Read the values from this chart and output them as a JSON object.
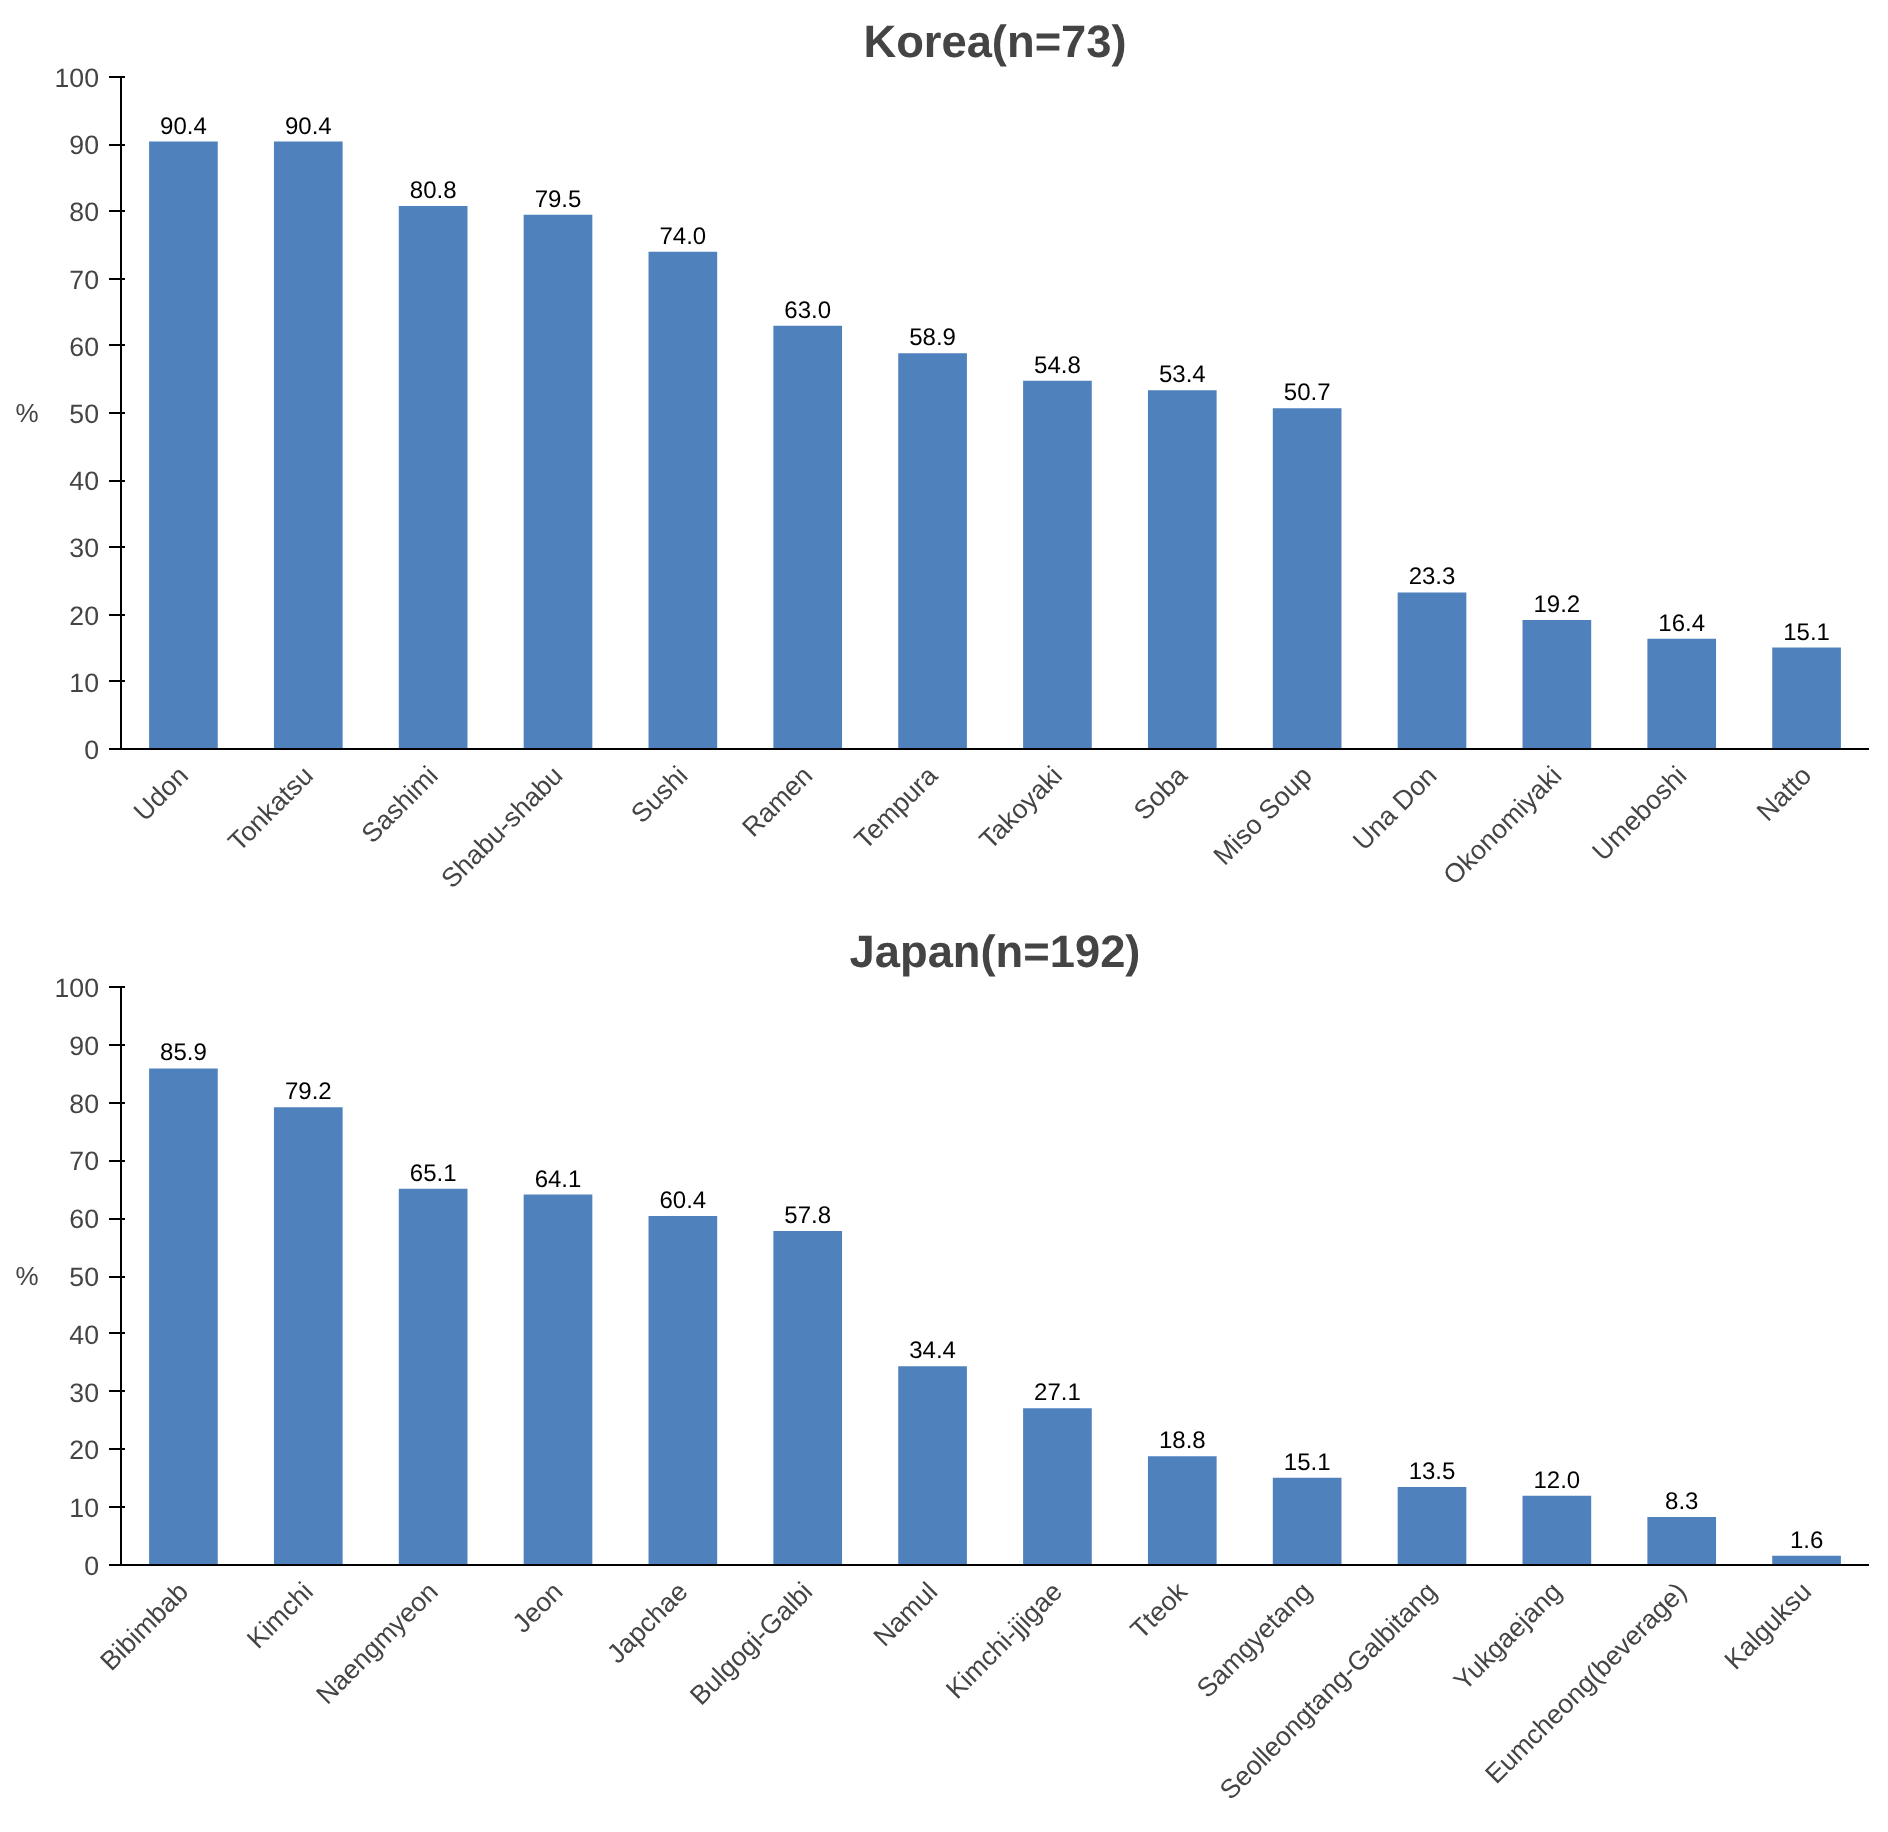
{
  "chart_data": [
    {
      "type": "bar",
      "title": "Korea(n=73)",
      "ylabel": "%",
      "categories": [
        "Udon",
        "Tonkatsu",
        "Sashimi",
        "Shabu-shabu",
        "Sushi",
        "Ramen",
        "Tempura",
        "Takoyaki",
        "Soba",
        "Miso Soup",
        "Una Don",
        "Okonomiyaki",
        "Umeboshi",
        "Natto"
      ],
      "values": [
        90.4,
        90.4,
        80.8,
        79.5,
        74.0,
        63.0,
        58.9,
        54.8,
        53.4,
        50.7,
        23.3,
        19.2,
        16.4,
        15.1
      ],
      "color": "#4f81bd",
      "value_labels": [
        "90.4",
        "90.4",
        "80.8",
        "79.5",
        "74.0",
        "63.0",
        "58.9",
        "54.8",
        "53.4",
        "50.7",
        "23.3",
        "19.2",
        "16.4",
        "15.1"
      ],
      "ylim": [
        0,
        100
      ],
      "yticks": [
        0,
        10,
        20,
        30,
        40,
        50,
        60,
        70,
        80,
        90,
        100
      ],
      "grid": false
    },
    {
      "type": "bar",
      "title": "Japan(n=192)",
      "ylabel": "%",
      "categories": [
        "Bibimbab",
        "Kimchi",
        "Naengmyeon",
        "Jeon",
        "Japchae",
        "Bulgogi-Galbi",
        "Namul",
        "Kimchi-jjigae",
        "Tteok",
        "Samgyetang",
        "Seolleongtang-Galbitang",
        "Yukgaejang",
        "Eumcheong(beverage)",
        "Kalguksu"
      ],
      "values": [
        85.9,
        79.2,
        65.1,
        64.1,
        60.4,
        57.8,
        34.4,
        27.1,
        18.8,
        15.1,
        13.5,
        12.0,
        8.3,
        1.6
      ],
      "color": "#4f81bd",
      "value_labels": [
        "85.9",
        "79.2",
        "65.1",
        "64.1",
        "60.4",
        "57.8",
        "34.4",
        "27.1",
        "18.8",
        "15.1",
        "13.5",
        "12.0",
        "8.3",
        "1.6"
      ],
      "ylim": [
        0,
        100
      ],
      "yticks": [
        0,
        10,
        20,
        30,
        40,
        50,
        60,
        70,
        80,
        90,
        100
      ],
      "grid": false
    }
  ]
}
